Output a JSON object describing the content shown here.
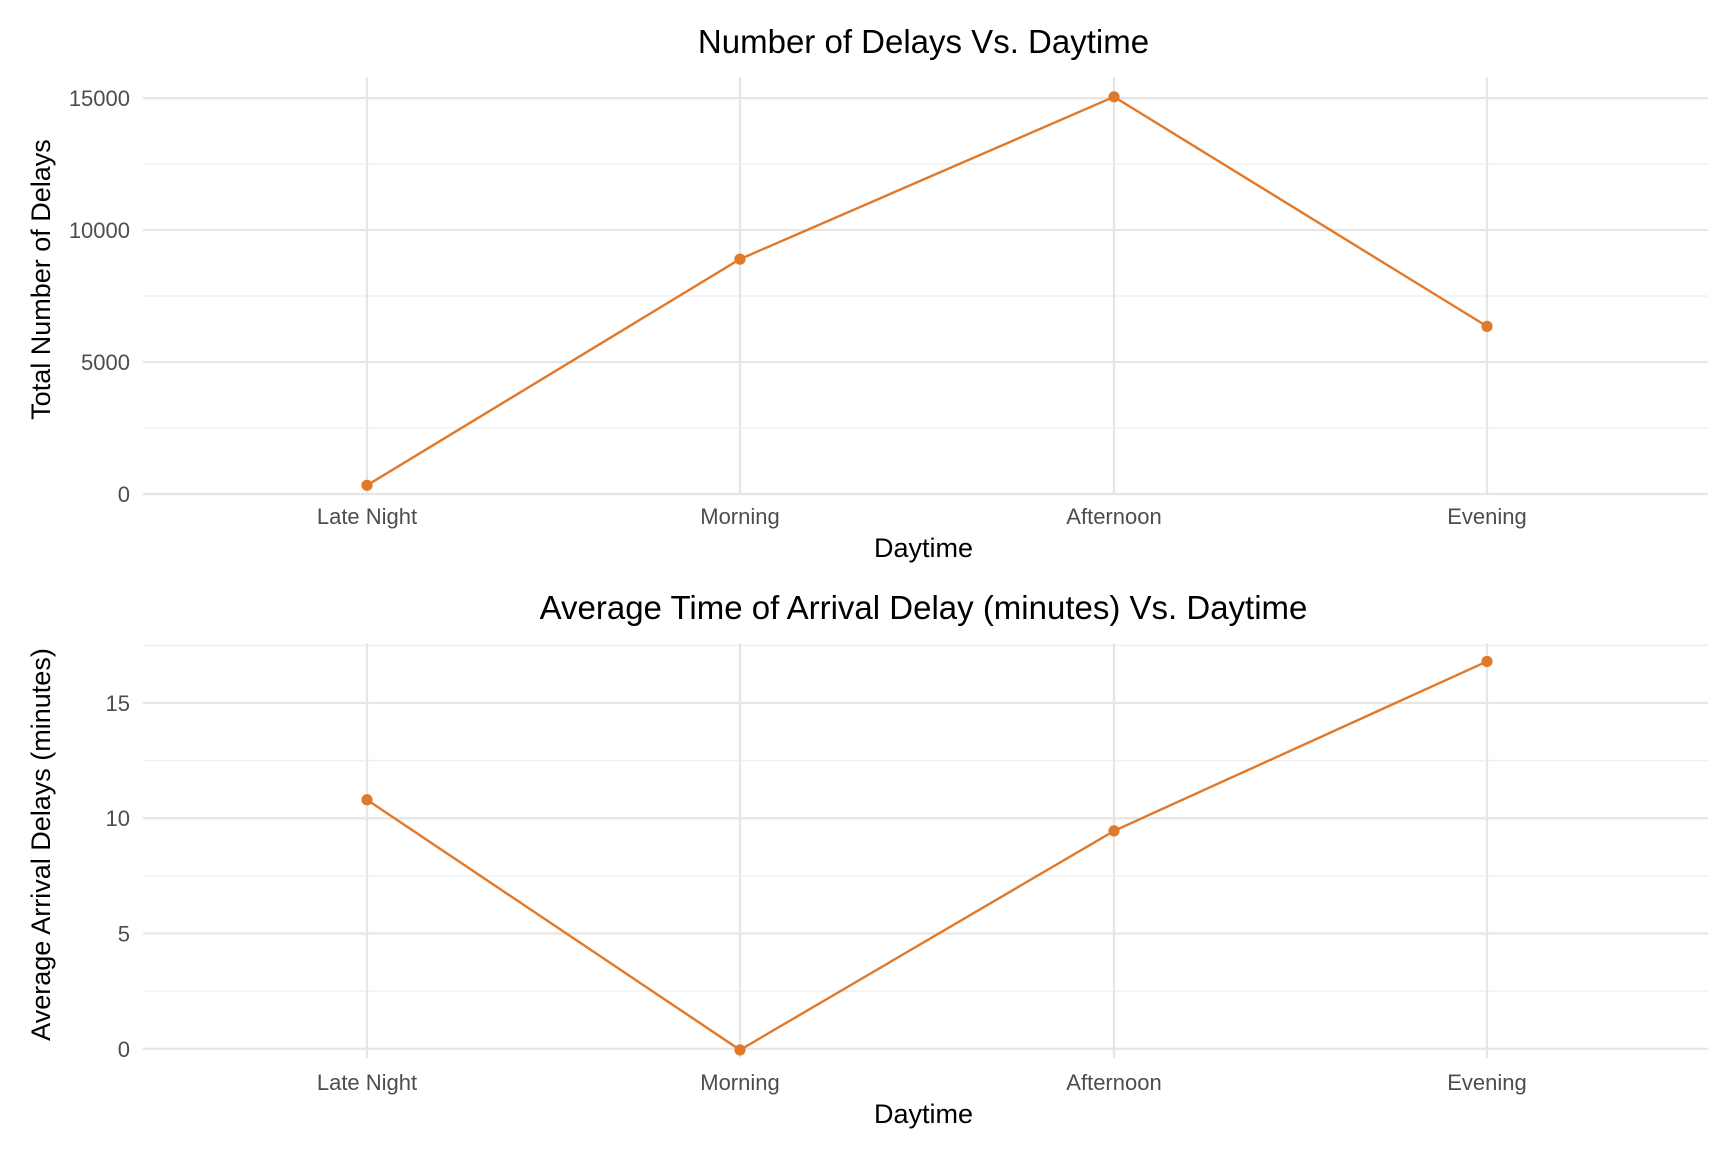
{
  "accent_color": "#e0792a",
  "chart_data": [
    {
      "type": "line",
      "title": "Number of Delays Vs. Daytime",
      "xlabel": "Daytime",
      "ylabel": "Total Number of Delays",
      "categories": [
        "Late Night",
        "Morning",
        "Afternoon",
        "Evening"
      ],
      "values": [
        330,
        8900,
        15050,
        6350
      ],
      "ylim": [
        0,
        15800
      ],
      "yticks": [
        0,
        5000,
        10000,
        15000
      ],
      "ytick_labels": [
        "0",
        "5000",
        "10000",
        "15000"
      ],
      "grid": true,
      "legend": "none"
    },
    {
      "type": "line",
      "title": "Average Time of Arrival Delay (minutes) Vs. Daytime",
      "xlabel": "Daytime",
      "ylabel": "Average Arrival Delays (minutes)",
      "categories": [
        "Late Night",
        "Morning",
        "Afternoon",
        "Evening"
      ],
      "values": [
        10.8,
        -0.05,
        9.45,
        16.8
      ],
      "ylim": [
        -0.4,
        17.6
      ],
      "yticks": [
        0,
        5,
        10,
        15
      ],
      "ytick_labels": [
        "0",
        "5",
        "10",
        "15"
      ],
      "grid": true,
      "legend": "none"
    }
  ]
}
